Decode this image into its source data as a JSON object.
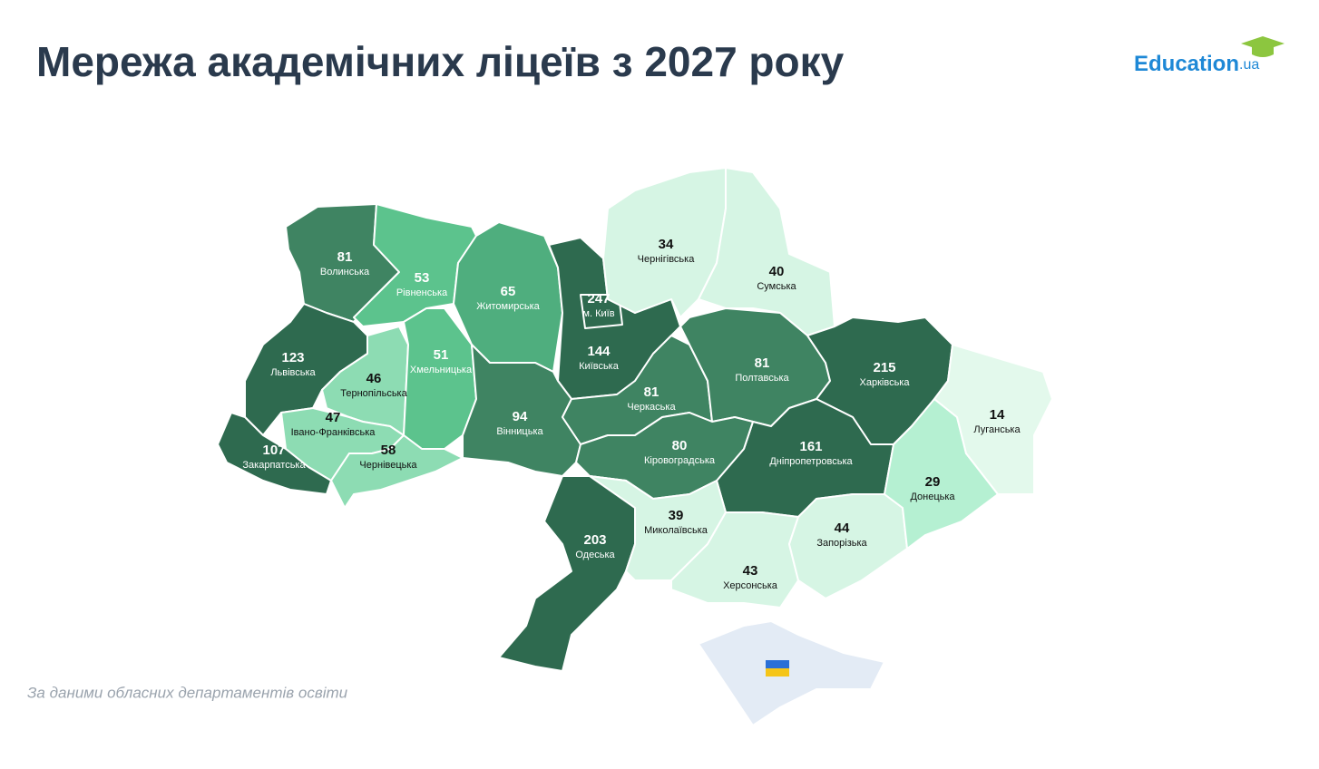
{
  "title": "Мережа академічних ліцеїв з 2027 року",
  "logo": {
    "name": "Education",
    "suffix": ".ua"
  },
  "source": "За даними обласних департаментів освіти",
  "chart_data": {
    "type": "choropleth",
    "regions": [
      {
        "name": "Волинська",
        "value": 81,
        "color": "#3f8462"
      },
      {
        "name": "Рівненська",
        "value": 53,
        "color": "#5cc38d"
      },
      {
        "name": "Житомирська",
        "value": 65,
        "color": "#4fae7e"
      },
      {
        "name": "Київська",
        "value": 144,
        "color": "#2e6a4f"
      },
      {
        "name": "м. Київ",
        "value": 247,
        "color": "#2e6a4f"
      },
      {
        "name": "Чернігівська",
        "value": 34,
        "color": "#d6f5e4"
      },
      {
        "name": "Сумська",
        "value": 40,
        "color": "#d6f5e4"
      },
      {
        "name": "Львівська",
        "value": 123,
        "color": "#2e6a4f"
      },
      {
        "name": "Тернопільська",
        "value": 46,
        "color": "#8ddcb3"
      },
      {
        "name": "Хмельницька",
        "value": 51,
        "color": "#5cc38d"
      },
      {
        "name": "Івано-Франківська",
        "value": 47,
        "color": "#8ddcb3"
      },
      {
        "name": "Закарпатська",
        "value": 107,
        "color": "#2e6a4f"
      },
      {
        "name": "Чернівецька",
        "value": 58,
        "color": "#8ddcb3"
      },
      {
        "name": "Вінницька",
        "value": 94,
        "color": "#3f8462"
      },
      {
        "name": "Черкаська",
        "value": 81,
        "color": "#3f8462"
      },
      {
        "name": "Полтавська",
        "value": 81,
        "color": "#3f8462"
      },
      {
        "name": "Харківська",
        "value": 215,
        "color": "#2e6a4f"
      },
      {
        "name": "Дніпропетровська",
        "value": 161,
        "color": "#2e6a4f"
      },
      {
        "name": "Кіровоградська",
        "value": 80,
        "color": "#3f8462"
      },
      {
        "name": "Одеська",
        "value": 203,
        "color": "#2e6a4f"
      },
      {
        "name": "Миколаївська",
        "value": 39,
        "color": "#d6f5e4"
      },
      {
        "name": "Херсонська",
        "value": 43,
        "color": "#d6f5e4"
      },
      {
        "name": "Запорізька",
        "value": 44,
        "color": "#d6f5e4"
      },
      {
        "name": "Донецька",
        "value": 29,
        "color": "#b5f0d2"
      },
      {
        "name": "Луганська",
        "value": 14,
        "color": "#e3f9ec"
      }
    ]
  }
}
